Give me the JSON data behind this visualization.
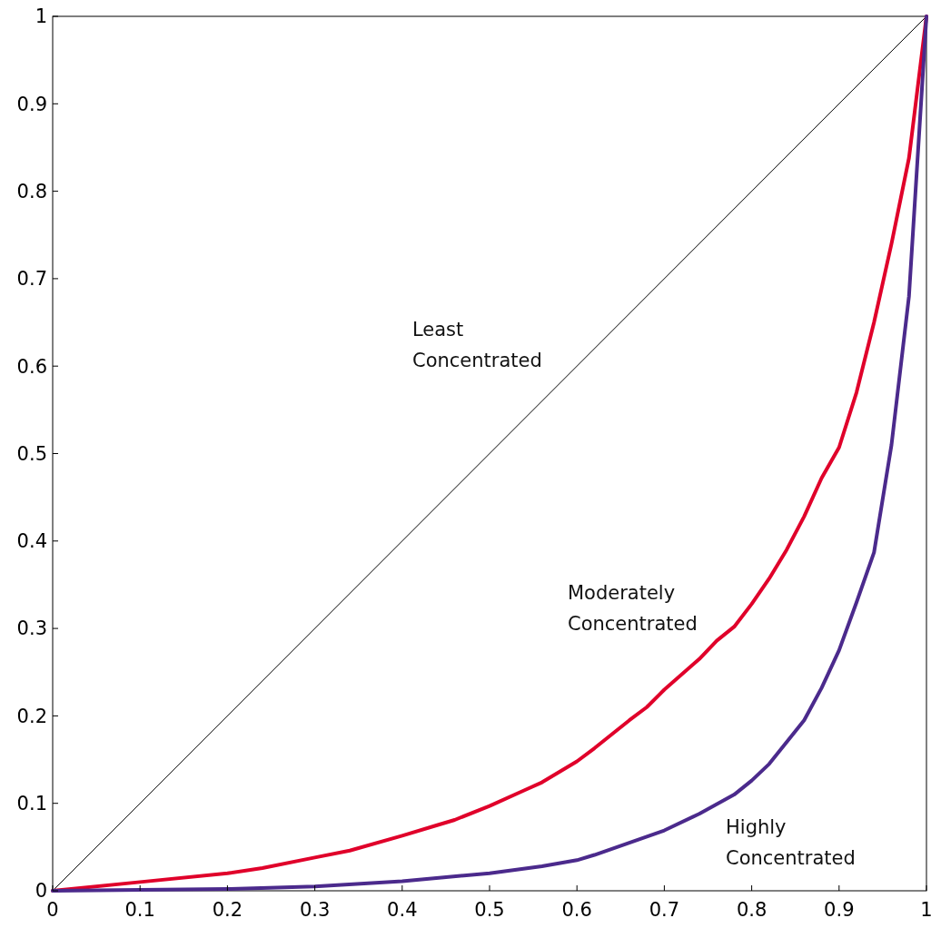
{
  "chart_data": {
    "type": "line",
    "xlim": [
      0,
      1
    ],
    "ylim": [
      0,
      1
    ],
    "xticks": [
      0,
      0.1,
      0.2,
      0.3,
      0.4,
      0.5,
      0.6,
      0.7,
      0.8,
      0.9,
      1
    ],
    "yticks": [
      0,
      0.1,
      0.2,
      0.3,
      0.4,
      0.5,
      0.6,
      0.7,
      0.8,
      0.9,
      1
    ],
    "grid": false,
    "marker": "none",
    "line_style": "solid",
    "series": [
      {
        "name": "Least\nConcentrated",
        "color": "#000000",
        "x": [
          0,
          1
        ],
        "values": [
          0,
          1
        ]
      },
      {
        "name": "Moderately\nConcentrated",
        "color": "#e0002a",
        "x": [
          0,
          0.1,
          0.2,
          0.24,
          0.3,
          0.34,
          0.4,
          0.44,
          0.46,
          0.5,
          0.54,
          0.56,
          0.6,
          0.62,
          0.66,
          0.68,
          0.7,
          0.74,
          0.76,
          0.78,
          0.8,
          0.82,
          0.84,
          0.86,
          0.88,
          0.9,
          0.92,
          0.94,
          0.96,
          0.98,
          1
        ],
        "values": [
          0,
          0.01,
          0.02,
          0.026,
          0.038,
          0.046,
          0.063,
          0.075,
          0.081,
          0.097,
          0.115,
          0.124,
          0.148,
          0.163,
          0.195,
          0.21,
          0.23,
          0.265,
          0.286,
          0.302,
          0.328,
          0.357,
          0.39,
          0.428,
          0.472,
          0.507,
          0.57,
          0.65,
          0.74,
          0.838,
          1
        ]
      },
      {
        "name": "Highly\nConcentrated",
        "color": "#4b2a8c",
        "x": [
          0,
          0.1,
          0.2,
          0.3,
          0.4,
          0.5,
          0.56,
          0.6,
          0.62,
          0.66,
          0.7,
          0.74,
          0.78,
          0.8,
          0.82,
          0.86,
          0.88,
          0.9,
          0.92,
          0.94,
          0.96,
          0.98,
          1
        ],
        "values": [
          0,
          0.001,
          0.002,
          0.005,
          0.011,
          0.02,
          0.028,
          0.035,
          0.041,
          0.055,
          0.069,
          0.088,
          0.11,
          0.126,
          0.145,
          0.195,
          0.232,
          0.275,
          0.33,
          0.387,
          0.51,
          0.68,
          1
        ]
      }
    ]
  }
}
